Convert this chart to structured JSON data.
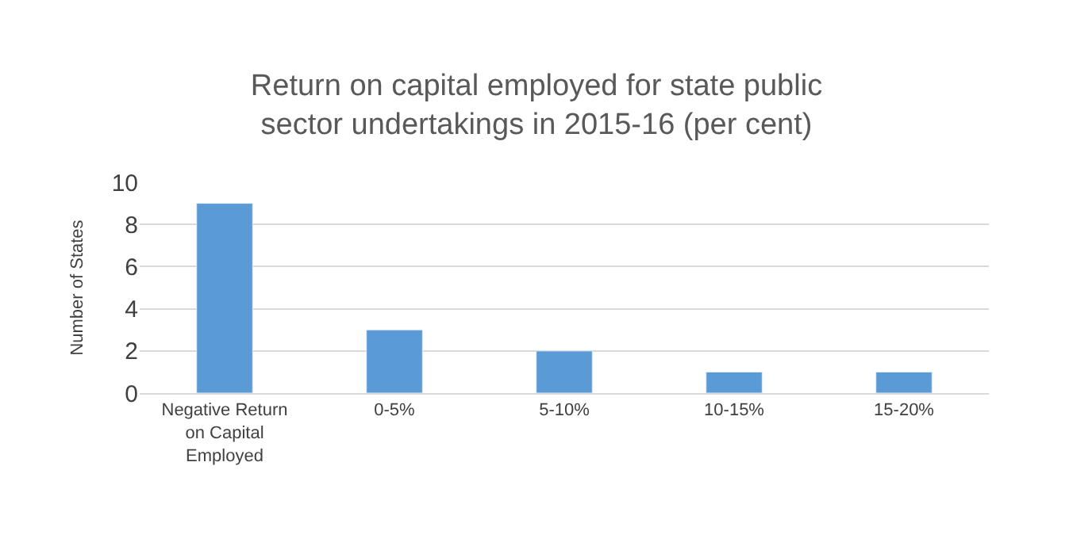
{
  "chart_data": {
    "type": "bar",
    "title": "Return on capital employed for state public sector undertakings in 2015-16 (per cent)",
    "ylabel": "Number of States",
    "categories": [
      "Negative Return on Capital Employed",
      "0-5%",
      "5-10%",
      "10-15%",
      "15-20%"
    ],
    "values": [
      9,
      3,
      2,
      1,
      1
    ],
    "color": "#5b9bd5",
    "ylim": [
      0,
      10
    ],
    "yticks": [
      0,
      2,
      4,
      6,
      8,
      10
    ],
    "grid": "y",
    "legend": false
  }
}
